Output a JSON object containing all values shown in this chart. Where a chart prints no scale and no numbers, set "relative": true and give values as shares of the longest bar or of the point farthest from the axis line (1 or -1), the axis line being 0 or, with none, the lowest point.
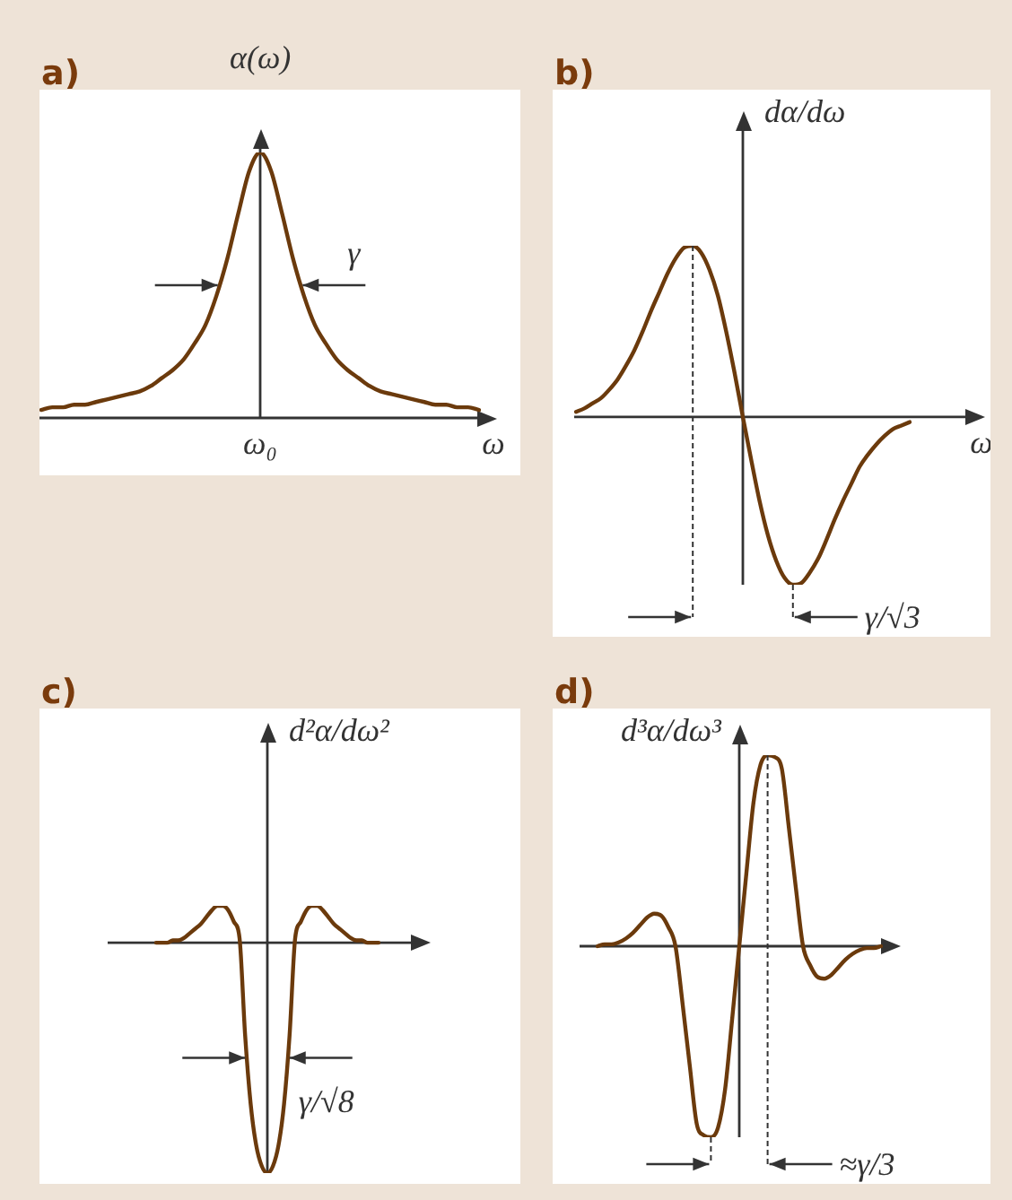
{
  "chart_data": [
    {
      "type": "line",
      "title": "a)",
      "ylabel": "α(ω)",
      "xlabel": "ω",
      "relative": true,
      "color": "#6b3a0c",
      "categories": [
        null,
        null,
        null,
        null,
        null,
        null,
        null,
        null,
        null,
        null,
        null,
        null,
        null,
        null,
        null,
        null,
        null,
        null,
        null,
        null,
        null,
        null,
        null,
        null,
        null,
        null,
        null,
        null,
        null,
        null,
        null,
        null,
        null,
        null,
        null,
        null,
        null,
        null,
        null,
        null,
        null
      ],
      "values": [
        0.03,
        0.04,
        0.04,
        0.05,
        0.05,
        0.06,
        0.07,
        0.08,
        0.09,
        0.1,
        0.12,
        0.15,
        0.18,
        0.22,
        0.28,
        0.35,
        0.46,
        0.6,
        0.77,
        0.93,
        1,
        0.93,
        0.77,
        0.6,
        0.46,
        0.35,
        0.28,
        0.22,
        0.18,
        0.15,
        0.12,
        0.1,
        0.09,
        0.08,
        0.07,
        0.06,
        0.05,
        0.05,
        0.04,
        0.04,
        0.03
      ],
      "annotations": [
        "ω₀",
        "γ"
      ]
    },
    {
      "type": "line",
      "title": "b)",
      "ylabel": "dα/dω",
      "xlabel": "ω",
      "relative": true,
      "color": "#6b3a0c",
      "categories": [
        null,
        null,
        null,
        null,
        null,
        null,
        null,
        null,
        null,
        null,
        null,
        null,
        null,
        null,
        null,
        null,
        null,
        null,
        null,
        null,
        null,
        null,
        null,
        null,
        null,
        null,
        null,
        null,
        null,
        null,
        null,
        null,
        null,
        null,
        null,
        null,
        null,
        null,
        null,
        null,
        null
      ],
      "values": [
        0.03,
        0.05,
        0.08,
        0.11,
        0.16,
        0.22,
        0.3,
        0.39,
        0.5,
        0.62,
        0.73,
        0.84,
        0.93,
        0.99,
        1,
        0.96,
        0.86,
        0.71,
        0.5,
        0.26,
        0,
        -0.25,
        -0.49,
        -0.69,
        -0.84,
        -0.94,
        -0.98,
        -0.97,
        -0.91,
        -0.83,
        -0.72,
        -0.6,
        -0.49,
        -0.39,
        -0.29,
        -0.22,
        -0.16,
        -0.11,
        -0.07,
        -0.05,
        -0.03
      ],
      "annotations": [
        "γ/√3"
      ]
    },
    {
      "type": "line",
      "title": "c)",
      "ylabel": "d²α/dω²",
      "relative": true,
      "color": "#6b3a0c",
      "categories": [
        null,
        null,
        null,
        null,
        null,
        null,
        null,
        null,
        null,
        null,
        null,
        null,
        null,
        null,
        null,
        null,
        null,
        null,
        null,
        null,
        null,
        null,
        null,
        null,
        null,
        null,
        null,
        null,
        null,
        null,
        null,
        null,
        null,
        null,
        null,
        null,
        null,
        null,
        null,
        null,
        null
      ],
      "values": [
        0,
        0,
        0,
        0.01,
        0.01,
        0.02,
        0.04,
        0.06,
        0.08,
        0.11,
        0.14,
        0.16,
        0.16,
        0.14,
        0.09,
        0.02,
        -0.4,
        -0.7,
        -0.88,
        -0.97,
        -1,
        -0.97,
        -0.88,
        -0.7,
        -0.4,
        0.02,
        0.09,
        0.14,
        0.16,
        0.16,
        0.14,
        0.11,
        0.08,
        0.06,
        0.04,
        0.02,
        0.01,
        0.01,
        0,
        0,
        0
      ],
      "annotations": [
        "γ/√8"
      ]
    },
    {
      "type": "line",
      "title": "d)",
      "ylabel": "d³α/dω³",
      "relative": true,
      "color": "#6b3a0c",
      "categories": [
        null,
        null,
        null,
        null,
        null,
        null,
        null,
        null,
        null,
        null,
        null,
        null,
        null,
        null,
        null,
        null,
        null,
        null,
        null,
        null,
        null,
        null,
        null,
        null,
        null,
        null,
        null,
        null,
        null,
        null,
        null,
        null,
        null,
        null,
        null,
        null,
        null,
        null,
        null,
        null,
        null
      ],
      "values": [
        0,
        0.01,
        0.01,
        0.02,
        0.04,
        0.07,
        0.11,
        0.15,
        0.17,
        0.16,
        0.1,
        0,
        -0.3,
        -0.62,
        -0.93,
        -0.99,
        -1,
        -0.95,
        -0.75,
        -0.38,
        0,
        0.38,
        0.75,
        0.95,
        1,
        0.99,
        0.93,
        0.62,
        0.3,
        0,
        -0.1,
        -0.16,
        -0.17,
        -0.15,
        -0.11,
        -0.07,
        -0.04,
        -0.02,
        -0.01,
        -0.01,
        0
      ],
      "annotations": [
        "≈γ/3"
      ]
    }
  ]
}
